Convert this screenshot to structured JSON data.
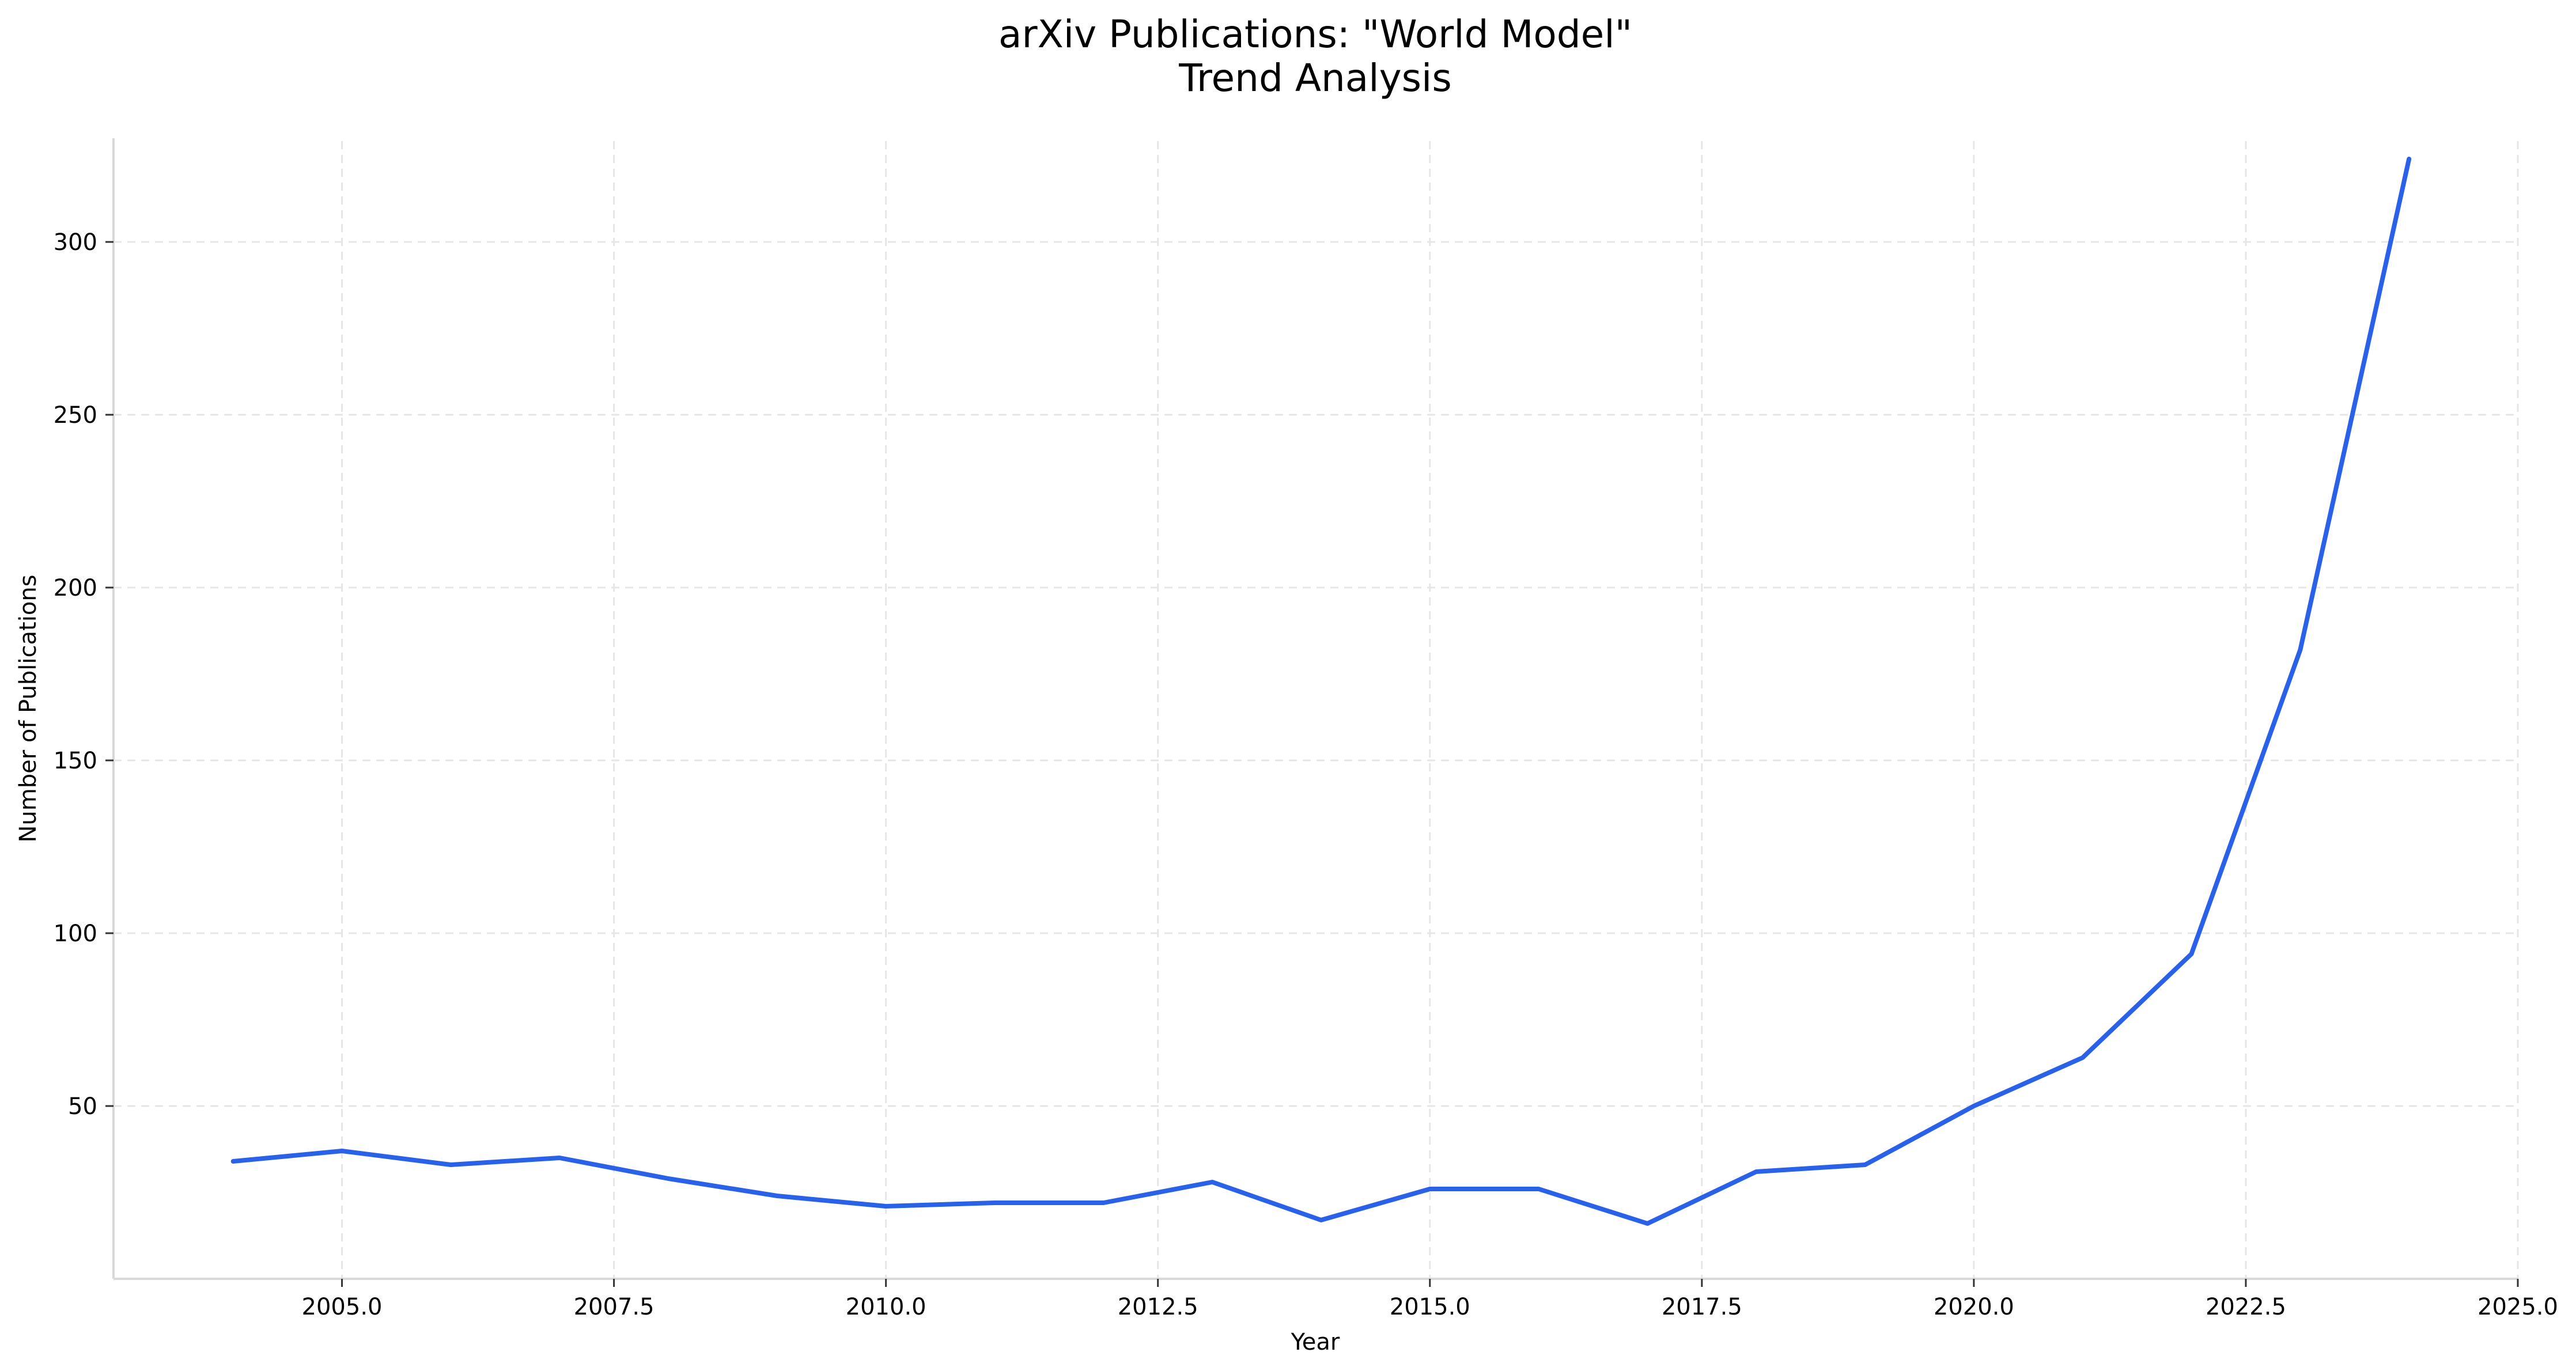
{
  "chart_data": {
    "type": "line",
    "title": "arXiv Publications: \"World Model\"",
    "subtitle": "Trend Analysis",
    "xlabel": "Year",
    "ylabel": "Number of Publications",
    "xlim": [
      2002.9,
      2025.0
    ],
    "ylim": [
      0,
      330
    ],
    "xticks": [
      2005.0,
      2007.5,
      2010.0,
      2012.5,
      2015.0,
      2017.5,
      2020.0,
      2022.5,
      2025.0
    ],
    "xtick_labels": [
      "2005.0",
      "2007.5",
      "2010.0",
      "2012.5",
      "2015.0",
      "2017.5",
      "2020.0",
      "2022.5",
      "2025.0"
    ],
    "yticks": [
      50,
      100,
      150,
      200,
      250,
      300
    ],
    "ytick_labels": [
      "50",
      "100",
      "150",
      "200",
      "250",
      "300"
    ],
    "grid": true,
    "legend": "none",
    "line_color": "#2962e8",
    "series": [
      {
        "x": [
          2004,
          2005,
          2006,
          2007,
          2008,
          2009,
          2010,
          2011,
          2012,
          2013,
          2014,
          2015,
          2016,
          2017,
          2018,
          2019,
          2020,
          2021,
          2022,
          2023,
          2024
        ],
        "values": [
          34,
          37,
          33,
          35,
          29,
          24,
          21,
          22,
          22,
          28,
          17,
          26,
          26,
          16,
          31,
          33,
          50,
          64,
          94,
          182,
          324
        ]
      }
    ]
  }
}
